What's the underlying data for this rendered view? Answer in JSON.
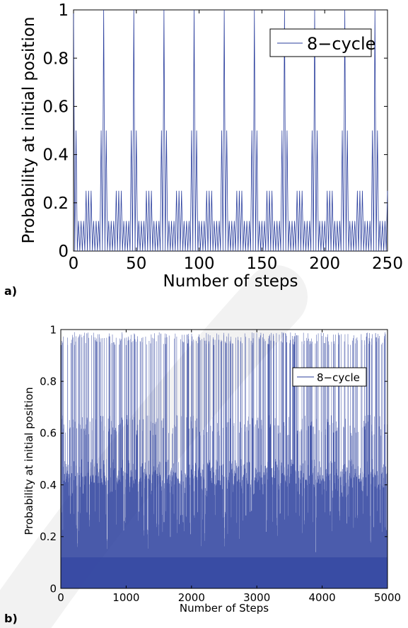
{
  "chart_data": [
    {
      "type": "line",
      "panel_label": "a)",
      "xlabel": "Number of steps",
      "ylabel": "Probability at initial position",
      "xlim": [
        0,
        250
      ],
      "ylim": [
        0,
        1
      ],
      "x_ticks": [
        0,
        50,
        100,
        150,
        200,
        250
      ],
      "y_ticks": [
        0,
        0.2,
        0.4,
        0.6,
        0.8,
        1
      ],
      "y_tick_labels": [
        "0",
        "0.2",
        "0.4",
        "0.6",
        "0.8",
        "1"
      ],
      "grid": false,
      "legend_position": "top-right",
      "series": [
        {
          "name": "8−cycle",
          "color": "#2b3f9e",
          "period": 24,
          "note_values": "one period (steps 0..23), repeats every 24 steps, odd steps are 0",
          "values": [
            1,
            0,
            0.5,
            0,
            0.125,
            0,
            0.125,
            0,
            0.125,
            0,
            0.25,
            0,
            0.25,
            0,
            0.25,
            0,
            0.125,
            0,
            0.125,
            0,
            0.125,
            0,
            0.5,
            0
          ]
        }
      ]
    },
    {
      "type": "line",
      "panel_label": "b)",
      "xlabel": "Number of Steps",
      "ylabel": "Probability at initial position",
      "xlim": [
        0,
        5000
      ],
      "ylim": [
        0,
        1
      ],
      "x_ticks": [
        0,
        1000,
        2000,
        3000,
        4000,
        5000
      ],
      "y_ticks": [
        0,
        0.2,
        0.4,
        0.6,
        0.8,
        1
      ],
      "y_tick_labels": [
        "0",
        "0.2",
        "0.4",
        "0.6",
        "0.8",
        "1"
      ],
      "grid": false,
      "legend_position": "top-right",
      "series": [
        {
          "name": "8−cycle",
          "color": "#2b3f9e",
          "envelope_max": [
            0.99,
            0.5,
            0.67,
            0.45,
            0.35,
            0.3,
            0.25,
            0.2
          ]
        }
      ]
    }
  ],
  "watermark": "Ac..."
}
